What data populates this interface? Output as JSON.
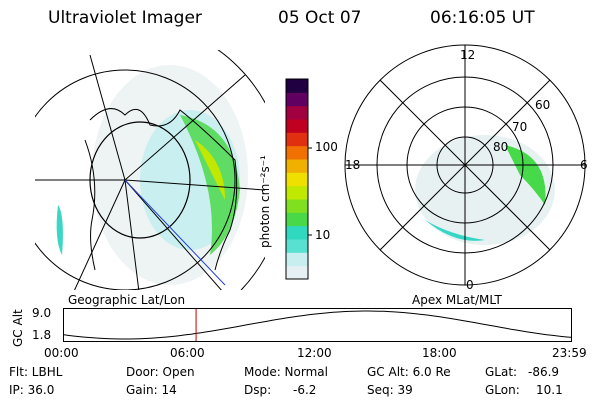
{
  "header": {
    "title": "Ultraviolet Imager",
    "date": "05 Oct 07",
    "time": "06:16:05 UT"
  },
  "colorbar": {
    "label": "photon cm⁻²s⁻¹",
    "ticks": [
      "100",
      "10"
    ],
    "colors": [
      "#e6f0f4",
      "#c8eef0",
      "#58e0d0",
      "#30d8c0",
      "#48d848",
      "#80e020",
      "#c0e800",
      "#f0e000",
      "#f0b000",
      "#f07000",
      "#e03010",
      "#c00020",
      "#a00040",
      "#600060",
      "#200040"
    ]
  },
  "left_panel": {
    "caption": "Geographic Lat/Lon"
  },
  "right_panel": {
    "caption": "Apex MLat/MLT",
    "mlt_labels": [
      "12",
      "18",
      "6",
      "0"
    ],
    "lat_labels": [
      "60",
      "70",
      "80"
    ]
  },
  "timeline": {
    "axis_title": "GC Alt",
    "y_ticks": [
      "9.0",
      "1.8"
    ],
    "x_ticks": [
      "00:00",
      "06:00",
      "12:00",
      "18:00",
      "23:59"
    ],
    "marker_fraction": 0.26
  },
  "info": {
    "flt": "Flt: LBHL",
    "ip": "IP: 36.0",
    "door": "Door: Open",
    "gain": "Gain: 14",
    "mode": "Mode: Normal",
    "dsp_label": "Dsp:",
    "dsp_value": "-6.2",
    "gc_alt": "GC Alt: 6.0 Re",
    "seq": "Seq: 39",
    "glat_label": "GLat:",
    "glat_value": "-86.9",
    "glon_label": "GLon:",
    "glon_value": "10.1"
  }
}
